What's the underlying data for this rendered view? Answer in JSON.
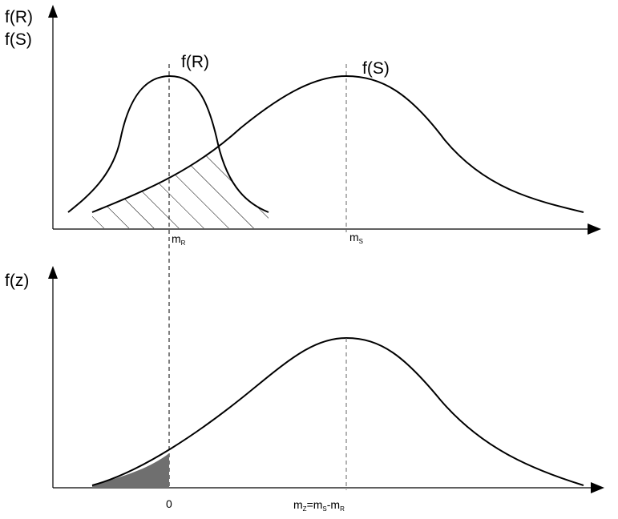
{
  "top_panel": {
    "y_axis_label_line1": "f(R)",
    "y_axis_label_line2": "f(S)",
    "curve_r_label": "f(R)",
    "curve_s_label": "f(S)",
    "mean_r_label": {
      "base": "m",
      "sub": "R"
    },
    "mean_s_label": {
      "base": "m",
      "sub": "S"
    }
  },
  "bottom_panel": {
    "y_axis_label": "f(z)",
    "zero_label": "0",
    "mean_z_label": {
      "p1": "m",
      "s1": "Z",
      "p2": "=m",
      "s2": "S",
      "p3": "-m",
      "s3": "R"
    }
  },
  "colors": {
    "curve": "#000000",
    "failure_area": "#6f6f6f",
    "hatch": "#000000"
  }
}
